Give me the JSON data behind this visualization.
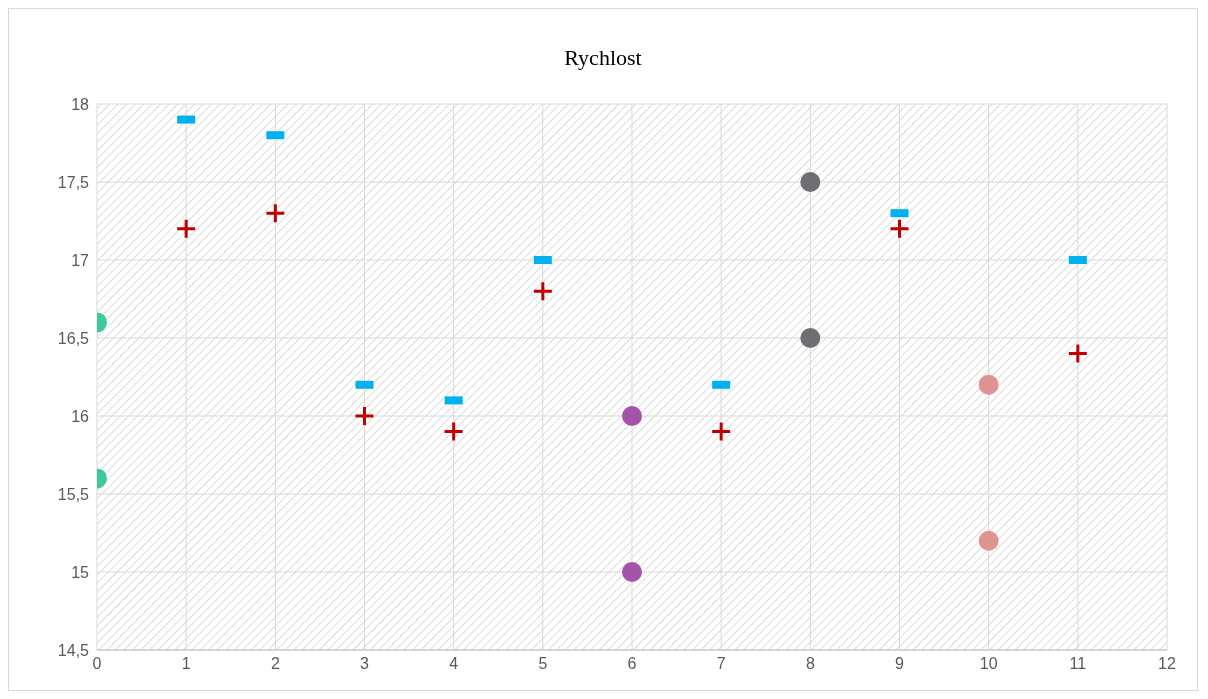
{
  "chart_data": {
    "type": "scatter",
    "title": "Rychlost",
    "series": [
      {
        "color": "#00b0f0",
        "marker": "square",
        "x": [
          1,
          2,
          3,
          4,
          5,
          7,
          9,
          11
        ],
        "values": [
          17.9,
          17.8,
          16.2,
          16.1,
          17.0,
          16.2,
          17.3,
          17.0
        ]
      },
      {
        "color": "#c00000",
        "marker": "cross",
        "x": [
          1,
          2,
          3,
          4,
          5,
          7,
          9,
          11
        ],
        "values": [
          17.2,
          17.3,
          16.0,
          15.9,
          16.8,
          15.9,
          17.2,
          16.4
        ]
      },
      {
        "color": "#3fc8a0",
        "marker": "circle",
        "x": [
          0,
          0
        ],
        "values": [
          16.6,
          15.6
        ]
      },
      {
        "color": "#a454a8",
        "marker": "circle",
        "x": [
          6,
          6
        ],
        "values": [
          16.0,
          15.0
        ]
      },
      {
        "color": "#6e6e73",
        "marker": "circle",
        "x": [
          8,
          8
        ],
        "values": [
          17.5,
          16.5
        ]
      },
      {
        "color": "#de9490",
        "marker": "circle",
        "x": [
          10,
          10
        ],
        "values": [
          16.2,
          15.2
        ]
      }
    ],
    "xlim": [
      0,
      12
    ],
    "xticks": [
      0,
      1,
      2,
      3,
      4,
      5,
      6,
      7,
      8,
      9,
      10,
      11,
      12
    ],
    "ylim": [
      14.5,
      18
    ],
    "yticks": [
      {
        "value": 14.5,
        "label": "14,5"
      },
      15,
      {
        "value": 15.5,
        "label": "15,5"
      },
      16,
      {
        "value": 16.5,
        "label": "16,5"
      },
      17,
      {
        "value": 17.5,
        "label": "17,5"
      },
      18
    ],
    "grid": true
  }
}
